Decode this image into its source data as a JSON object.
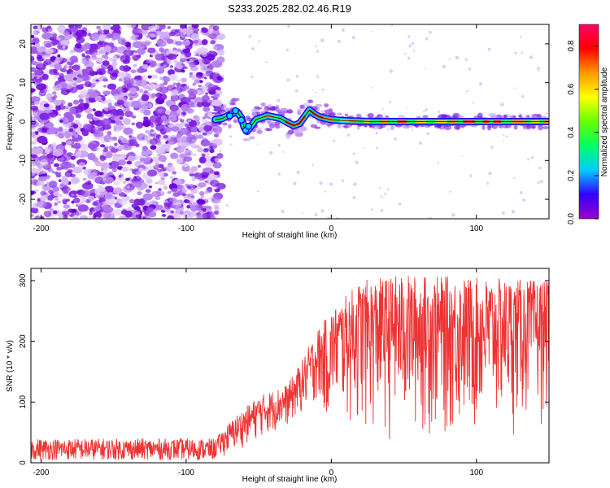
{
  "title": "S233.2025.282.02.46.R19",
  "chart_data": [
    {
      "type": "heatmap",
      "name": "spectrogram",
      "xlabel": "Height of straight line (km)",
      "ylabel": "Frequency (Hz)",
      "xlim": [
        -207,
        150
      ],
      "ylim": [
        -25,
        25
      ],
      "xticks": [
        -200,
        -100,
        0,
        100
      ],
      "yticks": [
        -20,
        -10,
        0,
        10,
        20
      ],
      "colorbar": {
        "label": "Normalized spectral amplitude",
        "range": [
          0.0,
          0.9
        ],
        "ticks": [
          0.0,
          0.2,
          0.4,
          0.6,
          0.8
        ],
        "stops": [
          "#9900cc",
          "#3300ff",
          "#00ccff",
          "#00ff66",
          "#66ff00",
          "#ffff00",
          "#ff9900",
          "#ff0000",
          "#ff0066"
        ]
      },
      "noise_region_x": [
        -207,
        -78
      ],
      "trace_start_x": -80,
      "trace": [
        {
          "x": -80,
          "f": 0.5
        },
        {
          "x": -75,
          "f": 0.8
        },
        {
          "x": -70,
          "f": 1.8
        },
        {
          "x": -65,
          "f": 2.5
        },
        {
          "x": -62,
          "f": 1.0
        },
        {
          "x": -60,
          "f": -1.5
        },
        {
          "x": -58,
          "f": -2.5
        },
        {
          "x": -55,
          "f": -1.0
        },
        {
          "x": -52,
          "f": 0.5
        },
        {
          "x": -48,
          "f": 1.0
        },
        {
          "x": -44,
          "f": 1.5
        },
        {
          "x": -40,
          "f": 1.2
        },
        {
          "x": -35,
          "f": 0.8
        },
        {
          "x": -30,
          "f": -0.3
        },
        {
          "x": -26,
          "f": -1.0
        },
        {
          "x": -22,
          "f": -0.5
        },
        {
          "x": -18,
          "f": 1.5
        },
        {
          "x": -15,
          "f": 3.0
        },
        {
          "x": -12,
          "f": 2.0
        },
        {
          "x": -8,
          "f": 1.2
        },
        {
          "x": -4,
          "f": 0.8
        },
        {
          "x": 0,
          "f": 0.5
        },
        {
          "x": 10,
          "f": 0.2
        },
        {
          "x": 30,
          "f": 0.0
        },
        {
          "x": 60,
          "f": 0.0
        },
        {
          "x": 100,
          "f": 0.0
        },
        {
          "x": 150,
          "f": 0.0
        }
      ]
    },
    {
      "type": "line",
      "name": "snr",
      "xlabel": "Height of straight line (km)",
      "ylabel": "SNR (10 * v/v)",
      "xlim": [
        -207,
        150
      ],
      "ylim": [
        0,
        320
      ],
      "xticks": [
        -200,
        -100,
        0,
        100
      ],
      "yticks": [
        0,
        100,
        200,
        300
      ],
      "color": "#ee3333",
      "envelope": [
        {
          "x": -207,
          "low": 5,
          "high": 40
        },
        {
          "x": -80,
          "low": 5,
          "high": 40
        },
        {
          "x": -65,
          "low": 20,
          "high": 80
        },
        {
          "x": -50,
          "low": 40,
          "high": 110
        },
        {
          "x": -30,
          "low": 60,
          "high": 130
        },
        {
          "x": -20,
          "low": 80,
          "high": 170
        },
        {
          "x": -10,
          "low": 100,
          "high": 220
        },
        {
          "x": 0,
          "low": 60,
          "high": 250
        },
        {
          "x": 20,
          "low": 20,
          "high": 300
        },
        {
          "x": 50,
          "low": 10,
          "high": 310
        },
        {
          "x": 100,
          "low": 10,
          "high": 305
        },
        {
          "x": 150,
          "low": 50,
          "high": 300
        }
      ]
    }
  ]
}
